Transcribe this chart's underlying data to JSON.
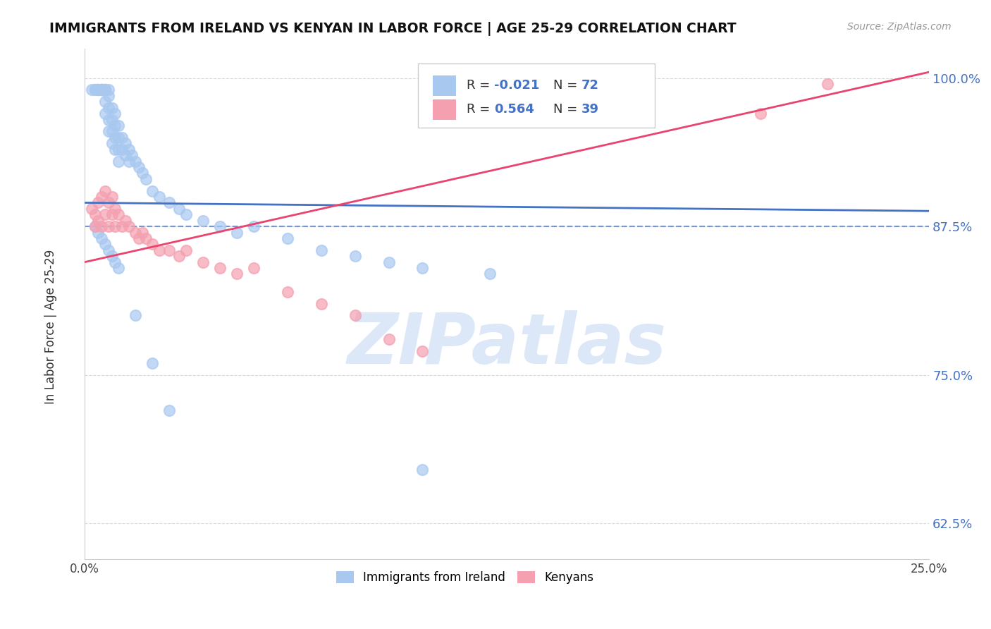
{
  "title": "IMMIGRANTS FROM IRELAND VS KENYAN IN LABOR FORCE | AGE 25-29 CORRELATION CHART",
  "source": "Source: ZipAtlas.com",
  "ylabel": "In Labor Force | Age 25-29",
  "xmin": 0.0,
  "xmax": 0.25,
  "ymin": 0.595,
  "ymax": 1.025,
  "yticks": [
    0.625,
    0.75,
    0.875,
    1.0
  ],
  "yticklabels": [
    "62.5%",
    "75.0%",
    "87.5%",
    "100.0%"
  ],
  "xticks": [
    0.0,
    0.25
  ],
  "xticklabels": [
    "0.0%",
    "25.0%"
  ],
  "ireland_R": -0.021,
  "ireland_N": 72,
  "kenyan_R": 0.564,
  "kenyan_N": 39,
  "ireland_color": "#a8c8f0",
  "kenyan_color": "#f4a0b0",
  "ireland_line_color": "#4472c4",
  "kenyan_line_color": "#e8446e",
  "watermark_color": "#dce8f8",
  "watermark": "ZIPatlas",
  "ireland_line_y0": 0.895,
  "ireland_line_y1": 0.888,
  "kenyan_line_y0": 0.845,
  "kenyan_line_y1": 1.005,
  "dashed_line_y": 0.875,
  "dashed_color": "#4472c4",
  "grid_color": "#d0d0d0",
  "tick_color": "#4472c4",
  "ireland_pts_x": [
    0.002,
    0.003,
    0.003,
    0.004,
    0.004,
    0.004,
    0.005,
    0.005,
    0.005,
    0.005,
    0.005,
    0.005,
    0.006,
    0.006,
    0.006,
    0.006,
    0.006,
    0.007,
    0.007,
    0.007,
    0.007,
    0.007,
    0.008,
    0.008,
    0.008,
    0.008,
    0.009,
    0.009,
    0.009,
    0.009,
    0.01,
    0.01,
    0.01,
    0.01,
    0.011,
    0.011,
    0.012,
    0.012,
    0.013,
    0.013,
    0.014,
    0.015,
    0.016,
    0.017,
    0.018,
    0.02,
    0.022,
    0.025,
    0.028,
    0.03,
    0.035,
    0.04,
    0.045,
    0.05,
    0.06,
    0.07,
    0.08,
    0.09,
    0.1,
    0.12,
    0.003,
    0.004,
    0.005,
    0.006,
    0.007,
    0.008,
    0.009,
    0.01,
    0.015,
    0.02,
    0.025,
    0.1
  ],
  "ireland_pts_y": [
    0.99,
    0.99,
    0.99,
    0.99,
    0.99,
    0.99,
    0.99,
    0.99,
    0.99,
    0.99,
    0.99,
    0.99,
    0.99,
    0.99,
    0.99,
    0.98,
    0.97,
    0.99,
    0.985,
    0.975,
    0.965,
    0.955,
    0.975,
    0.965,
    0.955,
    0.945,
    0.97,
    0.96,
    0.95,
    0.94,
    0.96,
    0.95,
    0.94,
    0.93,
    0.95,
    0.94,
    0.945,
    0.935,
    0.94,
    0.93,
    0.935,
    0.93,
    0.925,
    0.92,
    0.915,
    0.905,
    0.9,
    0.895,
    0.89,
    0.885,
    0.88,
    0.875,
    0.87,
    0.875,
    0.865,
    0.855,
    0.85,
    0.845,
    0.84,
    0.835,
    0.875,
    0.87,
    0.865,
    0.86,
    0.855,
    0.85,
    0.845,
    0.84,
    0.8,
    0.76,
    0.72,
    0.67
  ],
  "kenyan_pts_x": [
    0.002,
    0.003,
    0.003,
    0.004,
    0.004,
    0.005,
    0.005,
    0.006,
    0.006,
    0.007,
    0.007,
    0.008,
    0.008,
    0.009,
    0.009,
    0.01,
    0.011,
    0.012,
    0.013,
    0.015,
    0.016,
    0.017,
    0.018,
    0.02,
    0.022,
    0.025,
    0.028,
    0.03,
    0.035,
    0.04,
    0.045,
    0.05,
    0.06,
    0.07,
    0.08,
    0.09,
    0.1,
    0.2,
    0.22
  ],
  "kenyan_pts_y": [
    0.89,
    0.885,
    0.875,
    0.895,
    0.88,
    0.9,
    0.875,
    0.905,
    0.885,
    0.895,
    0.875,
    0.9,
    0.885,
    0.89,
    0.875,
    0.885,
    0.875,
    0.88,
    0.875,
    0.87,
    0.865,
    0.87,
    0.865,
    0.86,
    0.855,
    0.855,
    0.85,
    0.855,
    0.845,
    0.84,
    0.835,
    0.84,
    0.82,
    0.81,
    0.8,
    0.78,
    0.77,
    0.97,
    0.995
  ]
}
